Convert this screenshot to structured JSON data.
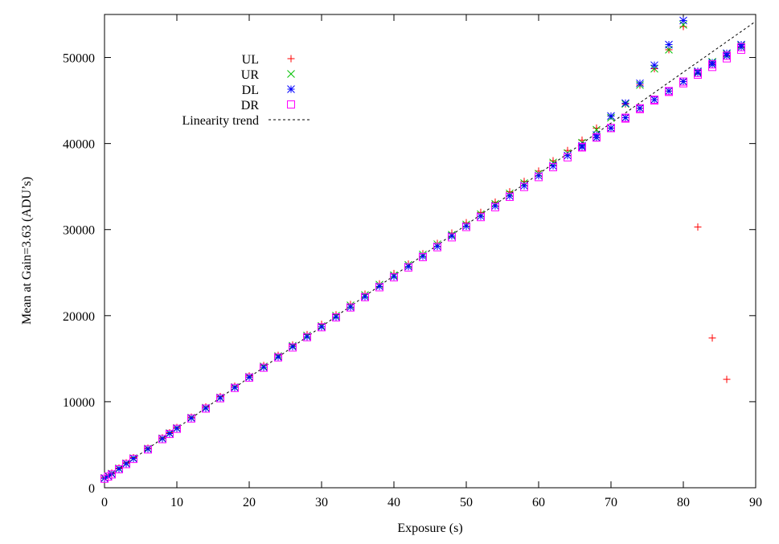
{
  "chart_data": {
    "type": "scatter",
    "xlabel": "Exposure (s)",
    "ylabel": "Mean at Gain=3.63 (ADU’s)",
    "xlim": [
      0,
      90
    ],
    "ylim": [
      0,
      55000
    ],
    "xticks": [
      0,
      10,
      20,
      30,
      40,
      50,
      60,
      70,
      80,
      90
    ],
    "yticks": [
      0,
      10000,
      20000,
      30000,
      40000,
      50000
    ],
    "grid": false,
    "legend_position": "top-left",
    "series": [
      {
        "name": "UL",
        "marker": "plus",
        "color": "#ff0000",
        "x": [
          0,
          0.5,
          1,
          2,
          3,
          4,
          6,
          8,
          9,
          10,
          12,
          14,
          16,
          18,
          20,
          22,
          24,
          26,
          28,
          30,
          32,
          34,
          36,
          38,
          40,
          42,
          44,
          46,
          48,
          50,
          52,
          54,
          56,
          58,
          60,
          62,
          64,
          66,
          68,
          70,
          72,
          74,
          76,
          78,
          80,
          82,
          84,
          86
        ],
        "y": [
          1200,
          1450,
          1700,
          2300,
          2900,
          3500,
          4600,
          5800,
          6400,
          7000,
          8200,
          9400,
          10600,
          11800,
          13000,
          14200,
          15400,
          16600,
          17800,
          19000,
          20100,
          21300,
          22500,
          23700,
          24900,
          26000,
          27200,
          28400,
          29600,
          30800,
          32000,
          33200,
          34400,
          35600,
          36800,
          38000,
          39200,
          40400,
          41800,
          43200,
          44600,
          46800,
          48700,
          50900,
          53600,
          30300,
          17400,
          12600
        ]
      },
      {
        "name": "UR",
        "marker": "cross",
        "color": "#00c000",
        "x": [
          0,
          0.5,
          1,
          2,
          3,
          4,
          6,
          8,
          9,
          10,
          12,
          14,
          16,
          18,
          20,
          22,
          24,
          26,
          28,
          30,
          32,
          34,
          36,
          38,
          40,
          42,
          44,
          46,
          48,
          50,
          52,
          54,
          56,
          58,
          60,
          62,
          64,
          66,
          68,
          70,
          72,
          74,
          76,
          78,
          80,
          82,
          84,
          86,
          88
        ],
        "y": [
          1150,
          1400,
          1650,
          2250,
          2850,
          3450,
          4550,
          5750,
          6350,
          6950,
          8150,
          9300,
          10500,
          11700,
          12900,
          14100,
          15300,
          16500,
          17700,
          18800,
          20000,
          21200,
          22400,
          23600,
          24700,
          25900,
          27100,
          28300,
          29400,
          30600,
          31800,
          33000,
          34200,
          35400,
          36500,
          37800,
          38900,
          40100,
          41600,
          43000,
          44600,
          46800,
          48700,
          50900,
          53800,
          48300,
          49500,
          50400,
          51400
        ]
      },
      {
        "name": "DL",
        "marker": "star",
        "color": "#0000ff",
        "x": [
          0,
          0.5,
          1,
          2,
          3,
          4,
          6,
          8,
          9,
          10,
          12,
          14,
          16,
          18,
          20,
          22,
          24,
          26,
          28,
          30,
          32,
          34,
          36,
          38,
          40,
          42,
          44,
          46,
          48,
          50,
          52,
          54,
          56,
          58,
          60,
          62,
          64,
          66,
          68,
          70,
          72,
          74,
          76,
          78,
          80,
          82,
          84,
          86,
          88
        ],
        "y": [
          1100,
          1350,
          1600,
          2200,
          2800,
          3400,
          4500,
          5700,
          6300,
          6900,
          8100,
          9250,
          10450,
          11650,
          12850,
          14000,
          15200,
          16400,
          17550,
          18700,
          19850,
          21000,
          22200,
          23400,
          24550,
          25700,
          26900,
          28050,
          29250,
          30400,
          31550,
          32750,
          33900,
          35100,
          36250,
          37400,
          38600,
          39750,
          41000,
          43200,
          44700,
          47000,
          49100,
          51500,
          54300,
          48400,
          49400,
          50500,
          51500
        ]
      },
      {
        "name": "DR",
        "marker": "square",
        "color": "#ff00ff",
        "x": [
          0,
          0.5,
          1,
          2,
          3,
          4,
          6,
          8,
          9,
          10,
          12,
          14,
          16,
          18,
          20,
          22,
          24,
          26,
          28,
          30,
          32,
          34,
          36,
          38,
          40,
          42,
          44,
          46,
          48,
          50,
          52,
          54,
          56,
          58,
          60,
          62,
          64,
          66,
          68,
          70,
          72,
          74,
          76,
          78,
          80,
          82,
          84,
          86,
          88
        ],
        "y": [
          1050,
          1300,
          1550,
          2150,
          2750,
          3350,
          4450,
          5650,
          6250,
          6850,
          8050,
          9200,
          10400,
          11600,
          12800,
          13950,
          15150,
          16300,
          17500,
          18650,
          19800,
          20950,
          22150,
          23300,
          24450,
          25600,
          26800,
          27950,
          29100,
          30300,
          31450,
          32600,
          33800,
          34950,
          36100,
          37250,
          38400,
          39550,
          40700,
          41800,
          42900,
          44000,
          45000,
          46000,
          47000,
          48000,
          48900,
          49900,
          50900
        ]
      }
    ],
    "trend": {
      "name": "Linearity trend",
      "style": "dotted",
      "color": "#000000",
      "x": [
        0,
        90
      ],
      "y": [
        1000,
        54200
      ]
    },
    "lower_branch": {
      "x": [
        66,
        68,
        70,
        72,
        74,
        76,
        78,
        80,
        82,
        84,
        86,
        88
      ],
      "y": [
        39600,
        40700,
        41800,
        43000,
        44100,
        45100,
        46100,
        47200,
        48200,
        49200,
        50200,
        51200
      ]
    }
  }
}
